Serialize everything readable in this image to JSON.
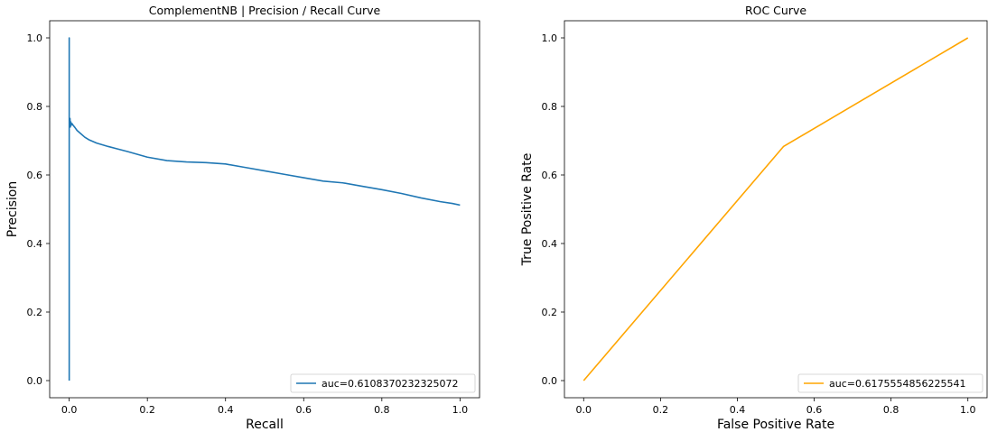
{
  "chart_data": [
    {
      "type": "line",
      "title": "ComplementNB | Precision / Recall Curve",
      "xlabel": "Recall",
      "ylabel": "Precision",
      "xlim": [
        -0.05,
        1.05
      ],
      "ylim": [
        -0.05,
        1.05
      ],
      "xticks": [
        0.0,
        0.2,
        0.4,
        0.6,
        0.8,
        1.0
      ],
      "yticks": [
        0.0,
        0.2,
        0.4,
        0.6,
        0.8,
        1.0
      ],
      "xtick_labels": [
        "0.0",
        "0.2",
        "0.4",
        "0.6",
        "0.8",
        "1.0"
      ],
      "ytick_labels": [
        "0.0",
        "0.2",
        "0.4",
        "0.6",
        "0.8",
        "1.0"
      ],
      "legend_position": "lower-right",
      "series": [
        {
          "name": "auc=0.6108370232325072",
          "color": "#1f77b4",
          "x": [
            0.0,
            0.0,
            0.0,
            0.001,
            0.002,
            0.003,
            0.004,
            0.005,
            0.007,
            0.01,
            0.015,
            0.02,
            0.03,
            0.04,
            0.05,
            0.07,
            0.1,
            0.15,
            0.2,
            0.25,
            0.3,
            0.35,
            0.4,
            0.45,
            0.5,
            0.55,
            0.6,
            0.65,
            0.7,
            0.75,
            0.8,
            0.85,
            0.9,
            0.95,
            0.98,
            1.0
          ],
          "y": [
            0.0,
            1.0,
            0.76,
            0.75,
            0.765,
            0.74,
            0.755,
            0.745,
            0.75,
            0.745,
            0.738,
            0.73,
            0.72,
            0.71,
            0.703,
            0.693,
            0.683,
            0.668,
            0.652,
            0.642,
            0.638,
            0.636,
            0.632,
            0.622,
            0.612,
            0.602,
            0.592,
            0.582,
            0.577,
            0.567,
            0.557,
            0.546,
            0.533,
            0.522,
            0.517,
            0.512
          ]
        }
      ]
    },
    {
      "type": "line",
      "title": "ROC Curve",
      "xlabel": "False Positive Rate",
      "ylabel": "True Positive Rate",
      "xlim": [
        -0.05,
        1.05
      ],
      "ylim": [
        -0.05,
        1.05
      ],
      "xticks": [
        0.0,
        0.2,
        0.4,
        0.6,
        0.8,
        1.0
      ],
      "yticks": [
        0.0,
        0.2,
        0.4,
        0.6,
        0.8,
        1.0
      ],
      "xtick_labels": [
        "0.0",
        "0.2",
        "0.4",
        "0.6",
        "0.8",
        "1.0"
      ],
      "ytick_labels": [
        "0.0",
        "0.2",
        "0.4",
        "0.6",
        "0.8",
        "1.0"
      ],
      "legend_position": "lower-right",
      "series": [
        {
          "name": "auc=0.6175554856225541",
          "color": "#ffa500",
          "x": [
            0.0,
            0.52,
            1.0
          ],
          "y": [
            0.0,
            0.683,
            1.0
          ]
        }
      ]
    }
  ]
}
